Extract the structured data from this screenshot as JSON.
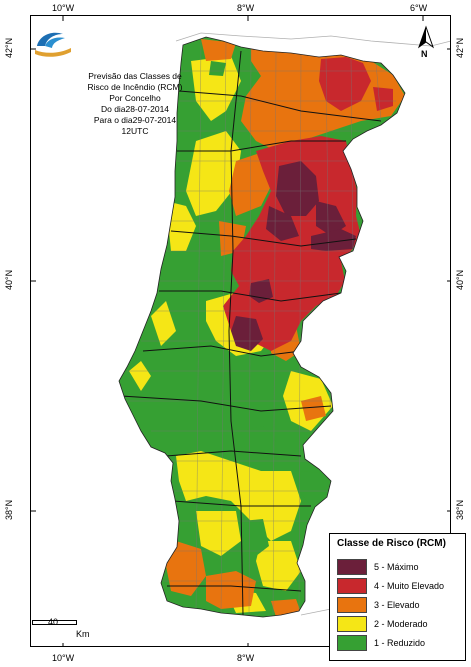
{
  "map": {
    "title_lines": [
      "Previsão das Classes de",
      "Risco de Incêndio (RCM)",
      "Por Concelho",
      "Do dia28-07-2014",
      "Para o dia29-07-2014",
      "12UTC"
    ],
    "lon_labels_top": [
      "10°W",
      "8°W",
      "6°W"
    ],
    "lon_labels_bottom": [
      "10°W",
      "8°W",
      "6°W"
    ],
    "lat_labels_left": [
      "42°N",
      "40°N",
      "38°N"
    ],
    "lat_labels_right": [
      "42°N",
      "40°N",
      "38°N"
    ],
    "north_label": "N",
    "scale": {
      "value": "40",
      "unit": "Km"
    },
    "colors": {
      "maximo": "#6b1f3a",
      "muito_elevado": "#c8282d",
      "elevado": "#e8740f",
      "moderado": "#f5e616",
      "reduzido": "#36a033",
      "sea": "#ffffff",
      "neighbor": "#ffffff"
    }
  },
  "legend": {
    "title": "Classe de Risco (RCM)",
    "items": [
      {
        "label": "5 - Máximo",
        "color": "#6b1f3a"
      },
      {
        "label": "4 - Muito Elevado",
        "color": "#c8282d"
      },
      {
        "label": "3 - Elevado",
        "color": "#e8740f"
      },
      {
        "label": "2 - Moderado",
        "color": "#f5e616"
      },
      {
        "label": "1 - Reduzido",
        "color": "#36a033"
      }
    ]
  }
}
